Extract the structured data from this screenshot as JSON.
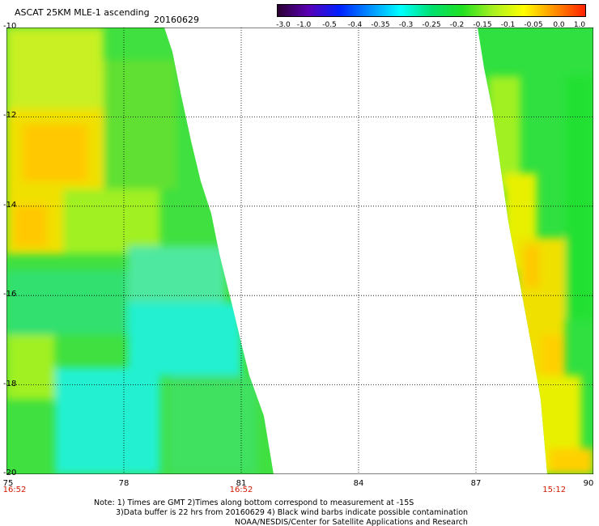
{
  "header": {
    "title": "ASCAT 25KM MLE-1 ascending",
    "date": "20160629"
  },
  "colorbar": {
    "gradient_stops": [
      "#2a0032",
      "#5a00b4",
      "#0020ff",
      "#0090ff",
      "#00ffff",
      "#00e070",
      "#20e020",
      "#a8f020",
      "#ffff00",
      "#ff9000",
      "#ff2000"
    ],
    "ticks": [
      "-3.0",
      "-1.0",
      "-0.5",
      "-0.4",
      "-0.35",
      "-0.3",
      "-0.25",
      "-0.2",
      "-0.15",
      "-0.1",
      "-0.05",
      "0.0",
      "1.0"
    ]
  },
  "map": {
    "lon_range": [
      75,
      90
    ],
    "lat_range": [
      -20,
      -10
    ],
    "x_ticks": [
      "75",
      "78",
      "81",
      "84",
      "87",
      "90"
    ],
    "y_ticks": [
      "-10",
      "-12",
      "-14",
      "-16",
      "-18",
      "-20"
    ],
    "time_labels": [
      {
        "text": "16:52",
        "lon": 75
      },
      {
        "text": "16:52",
        "lon": 81
      },
      {
        "text": "15:12",
        "lon": 89
      }
    ]
  },
  "notes": {
    "line1": "Note: 1) Times are GMT 2)Times along bottom correspond to measurement at -15S",
    "line2": "3)Data buffer is 22 hrs from 20160629 4) Black wind barbs indicate possible contamination",
    "line3": "NOAA/NESDIS/Center for Satellite Applications and Research"
  }
}
